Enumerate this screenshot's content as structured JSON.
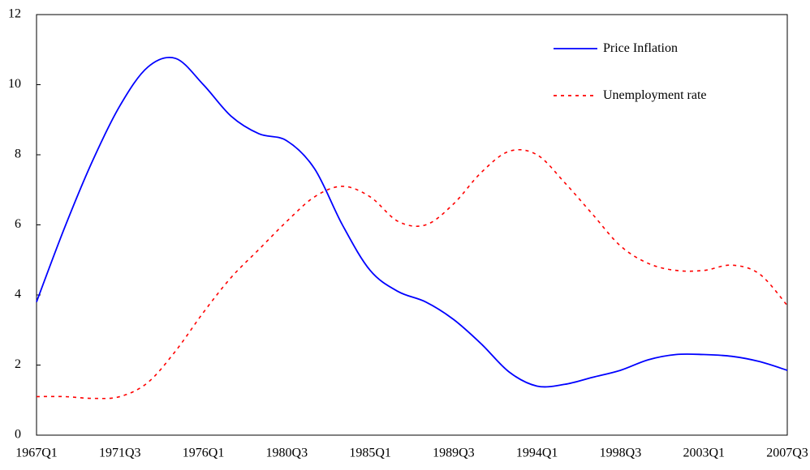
{
  "chart_data": {
    "type": "line",
    "categories": [
      "1967Q1",
      null,
      null,
      "1971Q3",
      null,
      null,
      "1976Q1",
      null,
      null,
      "1980Q3",
      null,
      null,
      "1985Q1",
      null,
      null,
      "1989Q3",
      null,
      null,
      "1994Q1",
      null,
      null,
      "1998Q3",
      null,
      null,
      "2003Q1",
      null,
      null,
      "2007Q3"
    ],
    "series": [
      {
        "name": "Price Inflation",
        "color": "#0000ff",
        "dash": "solid",
        "values": [
          3.8,
          5.9,
          7.8,
          9.4,
          10.5,
          10.75,
          10.0,
          9.1,
          8.6,
          8.4,
          7.6,
          6.0,
          4.7,
          4.1,
          3.8,
          3.3,
          2.6,
          1.8,
          1.4,
          1.45,
          1.65,
          1.85,
          2.15,
          2.3,
          2.3,
          2.25,
          2.1,
          1.85
        ]
      },
      {
        "name": "Unemployment rate",
        "color": "#ff0000",
        "dash": "dotted",
        "values": [
          1.1,
          1.1,
          1.05,
          1.1,
          1.5,
          2.4,
          3.5,
          4.5,
          5.3,
          6.1,
          6.8,
          7.1,
          6.8,
          6.1,
          6.0,
          6.6,
          7.5,
          8.1,
          8.0,
          7.2,
          6.3,
          5.4,
          4.9,
          4.7,
          4.7,
          4.85,
          4.6,
          3.7
        ]
      }
    ],
    "ylim": [
      0,
      12
    ],
    "yticks": [
      0,
      2,
      4,
      6,
      8,
      10,
      12
    ],
    "grid": false
  }
}
